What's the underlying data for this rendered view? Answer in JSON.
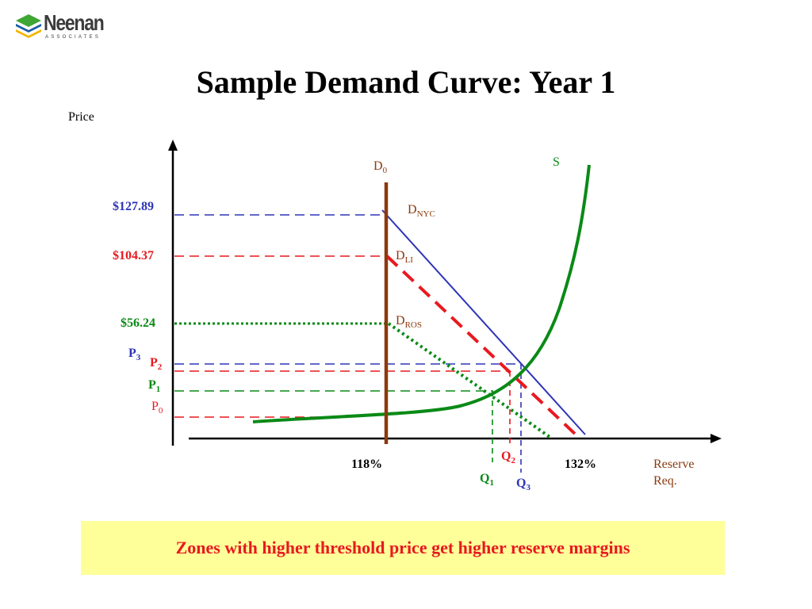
{
  "header": {
    "logo_name": "Neenan",
    "logo_sub": "ASSOCIATES",
    "title": "Sample Demand Curve: Year 1"
  },
  "axes": {
    "y_label": "Price",
    "x_label_line1": "Reserve",
    "x_label_line2": "Req."
  },
  "price_levels": {
    "p_nyc": "$127.89",
    "p_li": "$104.37",
    "p_ros": "$56.24",
    "p3": "P",
    "p3_sub": "3",
    "p2": "P",
    "p2_sub": "2",
    "p1": "P",
    "p1_sub": "1",
    "p0": "P",
    "p0_sub": "0"
  },
  "x_ticks": {
    "min_pct": "118%",
    "max_pct": "132%"
  },
  "quantities": {
    "q1": "Q",
    "q1_sub": "1",
    "q2": "Q",
    "q2_sub": "2",
    "q3": "Q",
    "q3_sub": "3"
  },
  "curves": {
    "d0": "D",
    "d0_sub": "0",
    "d_nyc": "D",
    "d_nyc_sub": "NYC",
    "d_li": "D",
    "d_li_sub": "LI",
    "d_ros": "D",
    "d_ros_sub": "ROS",
    "supply": "S"
  },
  "caption": "Zones with higher threshold price get higher reserve margins",
  "colors": {
    "nyc": "#2e35b8",
    "li": "#e8191f",
    "ros": "#0a8a16",
    "d0": "#8b3a0f",
    "caption_bg": "#ffff99"
  }
}
